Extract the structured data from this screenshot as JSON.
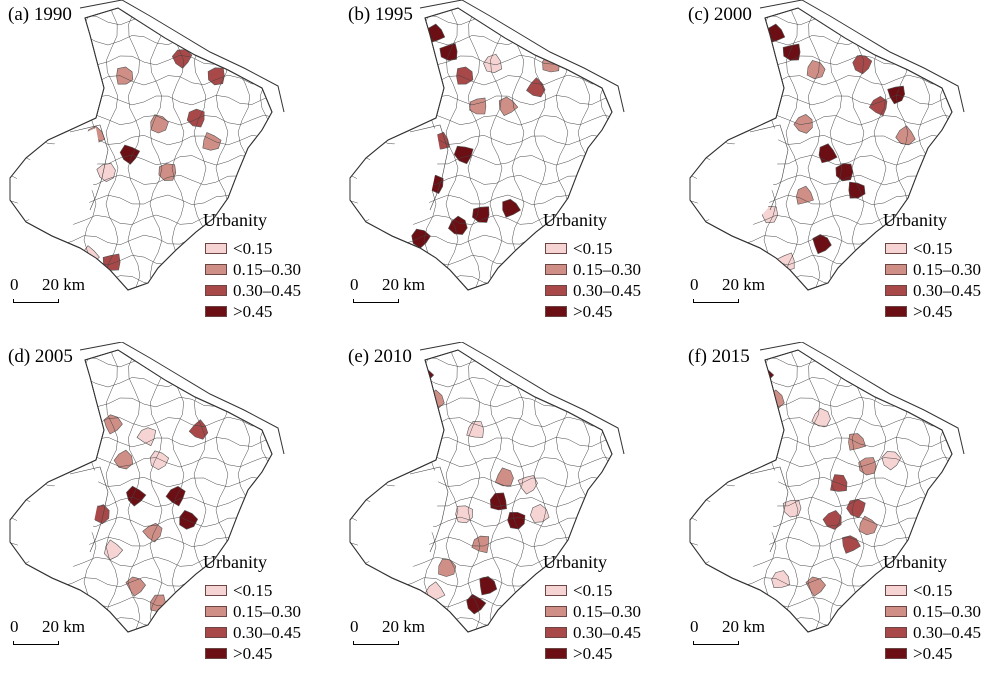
{
  "legend": {
    "title": "Urbanity",
    "classes": [
      {
        "label": "<0.15",
        "color": "#f7d4d4"
      },
      {
        "label": "0.15–0.30",
        "color": "#cf8f86"
      },
      {
        "label": "0.30–0.45",
        "color": "#a94848"
      },
      {
        "label": ">0.45",
        "color": "#6b0f14"
      }
    ]
  },
  "scale_bar": {
    "start": "0",
    "end": "20 km"
  },
  "panels": [
    {
      "title": "(a) 1990",
      "highlights": [
        [
          0.57,
          0.1,
          1
        ],
        [
          0.6,
          0.18,
          2
        ],
        [
          0.4,
          0.24,
          1
        ],
        [
          0.3,
          0.44,
          1
        ],
        [
          0.34,
          0.56,
          0
        ],
        [
          0.42,
          0.5,
          3
        ],
        [
          0.52,
          0.4,
          1
        ],
        [
          0.65,
          0.38,
          2
        ],
        [
          0.7,
          0.46,
          1
        ],
        [
          0.55,
          0.56,
          1
        ],
        [
          0.36,
          0.86,
          2
        ],
        [
          0.28,
          0.84,
          0
        ],
        [
          0.2,
          0.08,
          3
        ],
        [
          0.18,
          0.18,
          2
        ],
        [
          0.72,
          0.24,
          2
        ]
      ]
    },
    {
      "title": "(b) 1995",
      "highlights": [
        [
          0.3,
          0.1,
          3
        ],
        [
          0.35,
          0.16,
          3
        ],
        [
          0.4,
          0.24,
          2
        ],
        [
          0.45,
          0.34,
          1
        ],
        [
          0.55,
          0.34,
          1
        ],
        [
          0.65,
          0.28,
          2
        ],
        [
          0.32,
          0.46,
          2
        ],
        [
          0.4,
          0.5,
          3
        ],
        [
          0.3,
          0.6,
          3
        ],
        [
          0.38,
          0.74,
          3
        ],
        [
          0.46,
          0.7,
          3
        ],
        [
          0.56,
          0.68,
          3
        ],
        [
          0.25,
          0.78,
          3
        ],
        [
          0.7,
          0.2,
          1
        ],
        [
          0.5,
          0.2,
          0
        ]
      ]
    },
    {
      "title": "(c) 2000",
      "highlights": [
        [
          0.3,
          0.1,
          3
        ],
        [
          0.36,
          0.16,
          3
        ],
        [
          0.44,
          0.22,
          1
        ],
        [
          0.6,
          0.2,
          2
        ],
        [
          0.66,
          0.34,
          2
        ],
        [
          0.72,
          0.3,
          3
        ],
        [
          0.4,
          0.4,
          1
        ],
        [
          0.48,
          0.5,
          3
        ],
        [
          0.54,
          0.56,
          3
        ],
        [
          0.58,
          0.62,
          3
        ],
        [
          0.4,
          0.64,
          1
        ],
        [
          0.46,
          0.8,
          3
        ],
        [
          0.34,
          0.86,
          0
        ],
        [
          0.28,
          0.7,
          0
        ],
        [
          0.75,
          0.44,
          1
        ]
      ]
    },
    {
      "title": "(d) 2005",
      "highlights": [
        [
          0.2,
          0.1,
          3
        ],
        [
          0.26,
          0.16,
          3
        ],
        [
          0.36,
          0.26,
          1
        ],
        [
          0.48,
          0.3,
          0
        ],
        [
          0.52,
          0.38,
          0
        ],
        [
          0.66,
          0.28,
          2
        ],
        [
          0.44,
          0.5,
          3
        ],
        [
          0.58,
          0.5,
          3
        ],
        [
          0.62,
          0.58,
          3
        ],
        [
          0.5,
          0.62,
          1
        ],
        [
          0.32,
          0.56,
          2
        ],
        [
          0.36,
          0.68,
          0
        ],
        [
          0.44,
          0.8,
          1
        ],
        [
          0.52,
          0.86,
          1
        ],
        [
          0.4,
          0.38,
          1
        ]
      ]
    },
    {
      "title": "(e) 2010",
      "highlights": [
        [
          0.16,
          0.1,
          1
        ],
        [
          0.26,
          0.1,
          3
        ],
        [
          0.3,
          0.18,
          1
        ],
        [
          0.44,
          0.28,
          0
        ],
        [
          0.54,
          0.44,
          1
        ],
        [
          0.52,
          0.52,
          3
        ],
        [
          0.58,
          0.58,
          3
        ],
        [
          0.62,
          0.46,
          0
        ],
        [
          0.4,
          0.56,
          0
        ],
        [
          0.46,
          0.66,
          1
        ],
        [
          0.34,
          0.74,
          1
        ],
        [
          0.48,
          0.8,
          3
        ],
        [
          0.44,
          0.86,
          3
        ],
        [
          0.3,
          0.82,
          0
        ],
        [
          0.66,
          0.56,
          0
        ]
      ]
    },
    {
      "title": "(f) 2015",
      "highlights": [
        [
          0.16,
          0.08,
          1
        ],
        [
          0.26,
          0.1,
          3
        ],
        [
          0.3,
          0.18,
          1
        ],
        [
          0.46,
          0.24,
          0
        ],
        [
          0.58,
          0.32,
          1
        ],
        [
          0.62,
          0.4,
          1
        ],
        [
          0.52,
          0.46,
          2
        ],
        [
          0.58,
          0.54,
          2
        ],
        [
          0.5,
          0.58,
          2
        ],
        [
          0.56,
          0.66,
          2
        ],
        [
          0.62,
          0.6,
          1
        ],
        [
          0.36,
          0.54,
          0
        ],
        [
          0.44,
          0.8,
          1
        ],
        [
          0.32,
          0.78,
          0
        ],
        [
          0.7,
          0.38,
          0
        ]
      ]
    }
  ]
}
